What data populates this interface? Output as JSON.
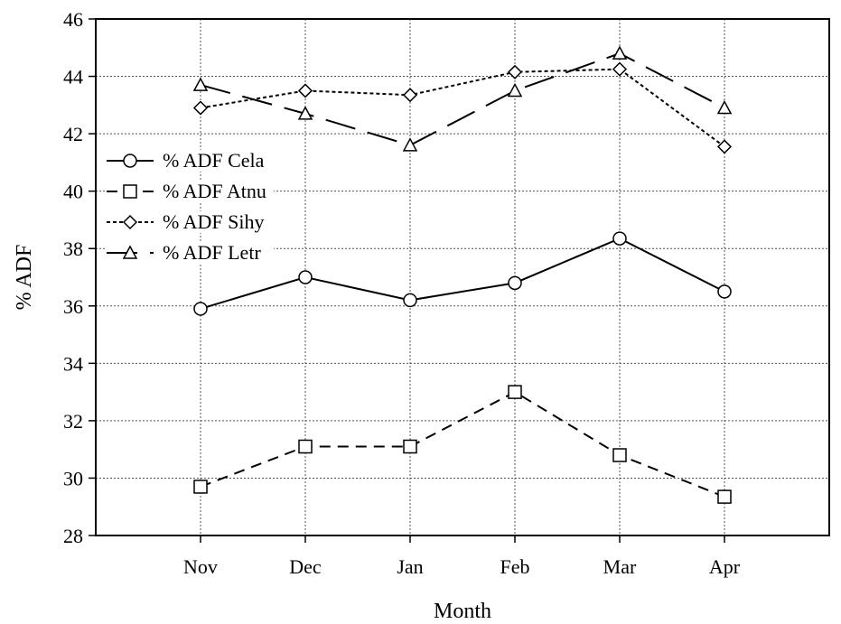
{
  "chart_data": {
    "type": "line",
    "title": "",
    "xlabel": "Month",
    "ylabel": "% ADF",
    "categories": [
      "Nov",
      "Dec",
      "Jan",
      "Feb",
      "Mar",
      "Apr"
    ],
    "ylim": [
      28,
      46
    ],
    "yticks": [
      "28",
      "30",
      "32",
      "34",
      "36",
      "38",
      "40",
      "42",
      "44",
      "46"
    ],
    "grid": true,
    "legend_position": "left",
    "series": [
      {
        "name": "% ADF Cela",
        "marker": "circle",
        "dash": "solid",
        "values": [
          35.9,
          37.0,
          36.2,
          36.8,
          38.35,
          36.5
        ]
      },
      {
        "name": "% ADF Atnu",
        "marker": "square",
        "dash": "dashed",
        "values": [
          29.7,
          31.1,
          31.1,
          33.0,
          30.8,
          29.35
        ]
      },
      {
        "name": "% ADF Sihy",
        "marker": "diamond",
        "dash": "dotted",
        "values": [
          42.9,
          43.5,
          43.35,
          44.15,
          44.25,
          41.55
        ]
      },
      {
        "name": "% ADF Letr",
        "marker": "triangle",
        "dash": "longdash",
        "values": [
          43.7,
          42.7,
          41.6,
          43.5,
          44.8,
          42.9
        ]
      }
    ]
  }
}
